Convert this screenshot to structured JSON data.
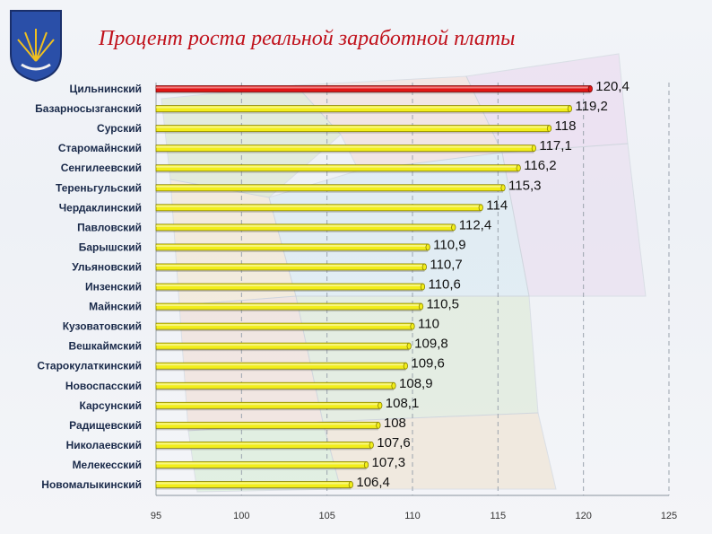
{
  "header": {
    "title": "Процент роста реальной заработной платы"
  },
  "colors": {
    "highlight_bar": "#e01515",
    "bar": "#f2ee1a",
    "bar_edge": "#8a8400",
    "title": "#c0111b"
  },
  "chart_data": {
    "type": "bar",
    "orientation": "horizontal",
    "title": "Процент роста реальной заработной платы",
    "xlabel": "",
    "ylabel": "",
    "xlim": [
      95,
      125
    ],
    "xticks": [
      95,
      100,
      105,
      110,
      115,
      120,
      125
    ],
    "grid": true,
    "highlight_index": 0,
    "categories": [
      "Цильнинский",
      "Базарносызганский",
      "Сурский",
      "Старомайнский",
      "Сенгилеевский",
      "Тереньгульский",
      "Чердаклинский",
      "Павловский",
      "Барышский",
      "Ульяновский",
      "Инзенский",
      "Майнский",
      "Кузоватовский",
      "Вешкаймский",
      "Старокулаткинский",
      "Новоспасский",
      "Карсунский",
      "Радищевский",
      "Николаевский",
      "Мелекесский",
      "Новомалыкинский"
    ],
    "values": [
      120.4,
      119.2,
      118,
      117.1,
      116.2,
      115.3,
      114,
      112.4,
      110.9,
      110.7,
      110.6,
      110.5,
      110,
      109.8,
      109.6,
      108.9,
      108.1,
      108,
      107.6,
      107.3,
      106.4
    ],
    "value_labels": [
      "120,4",
      "119,2",
      "118",
      "117,1",
      "116,2",
      "115,3",
      "114",
      "112,4",
      "110,9",
      "110,7",
      "110,6",
      "110,5",
      "110",
      "109,8",
      "109,6",
      "108,9",
      "108,1",
      "108",
      "107,6",
      "107,3",
      "106,4"
    ]
  }
}
